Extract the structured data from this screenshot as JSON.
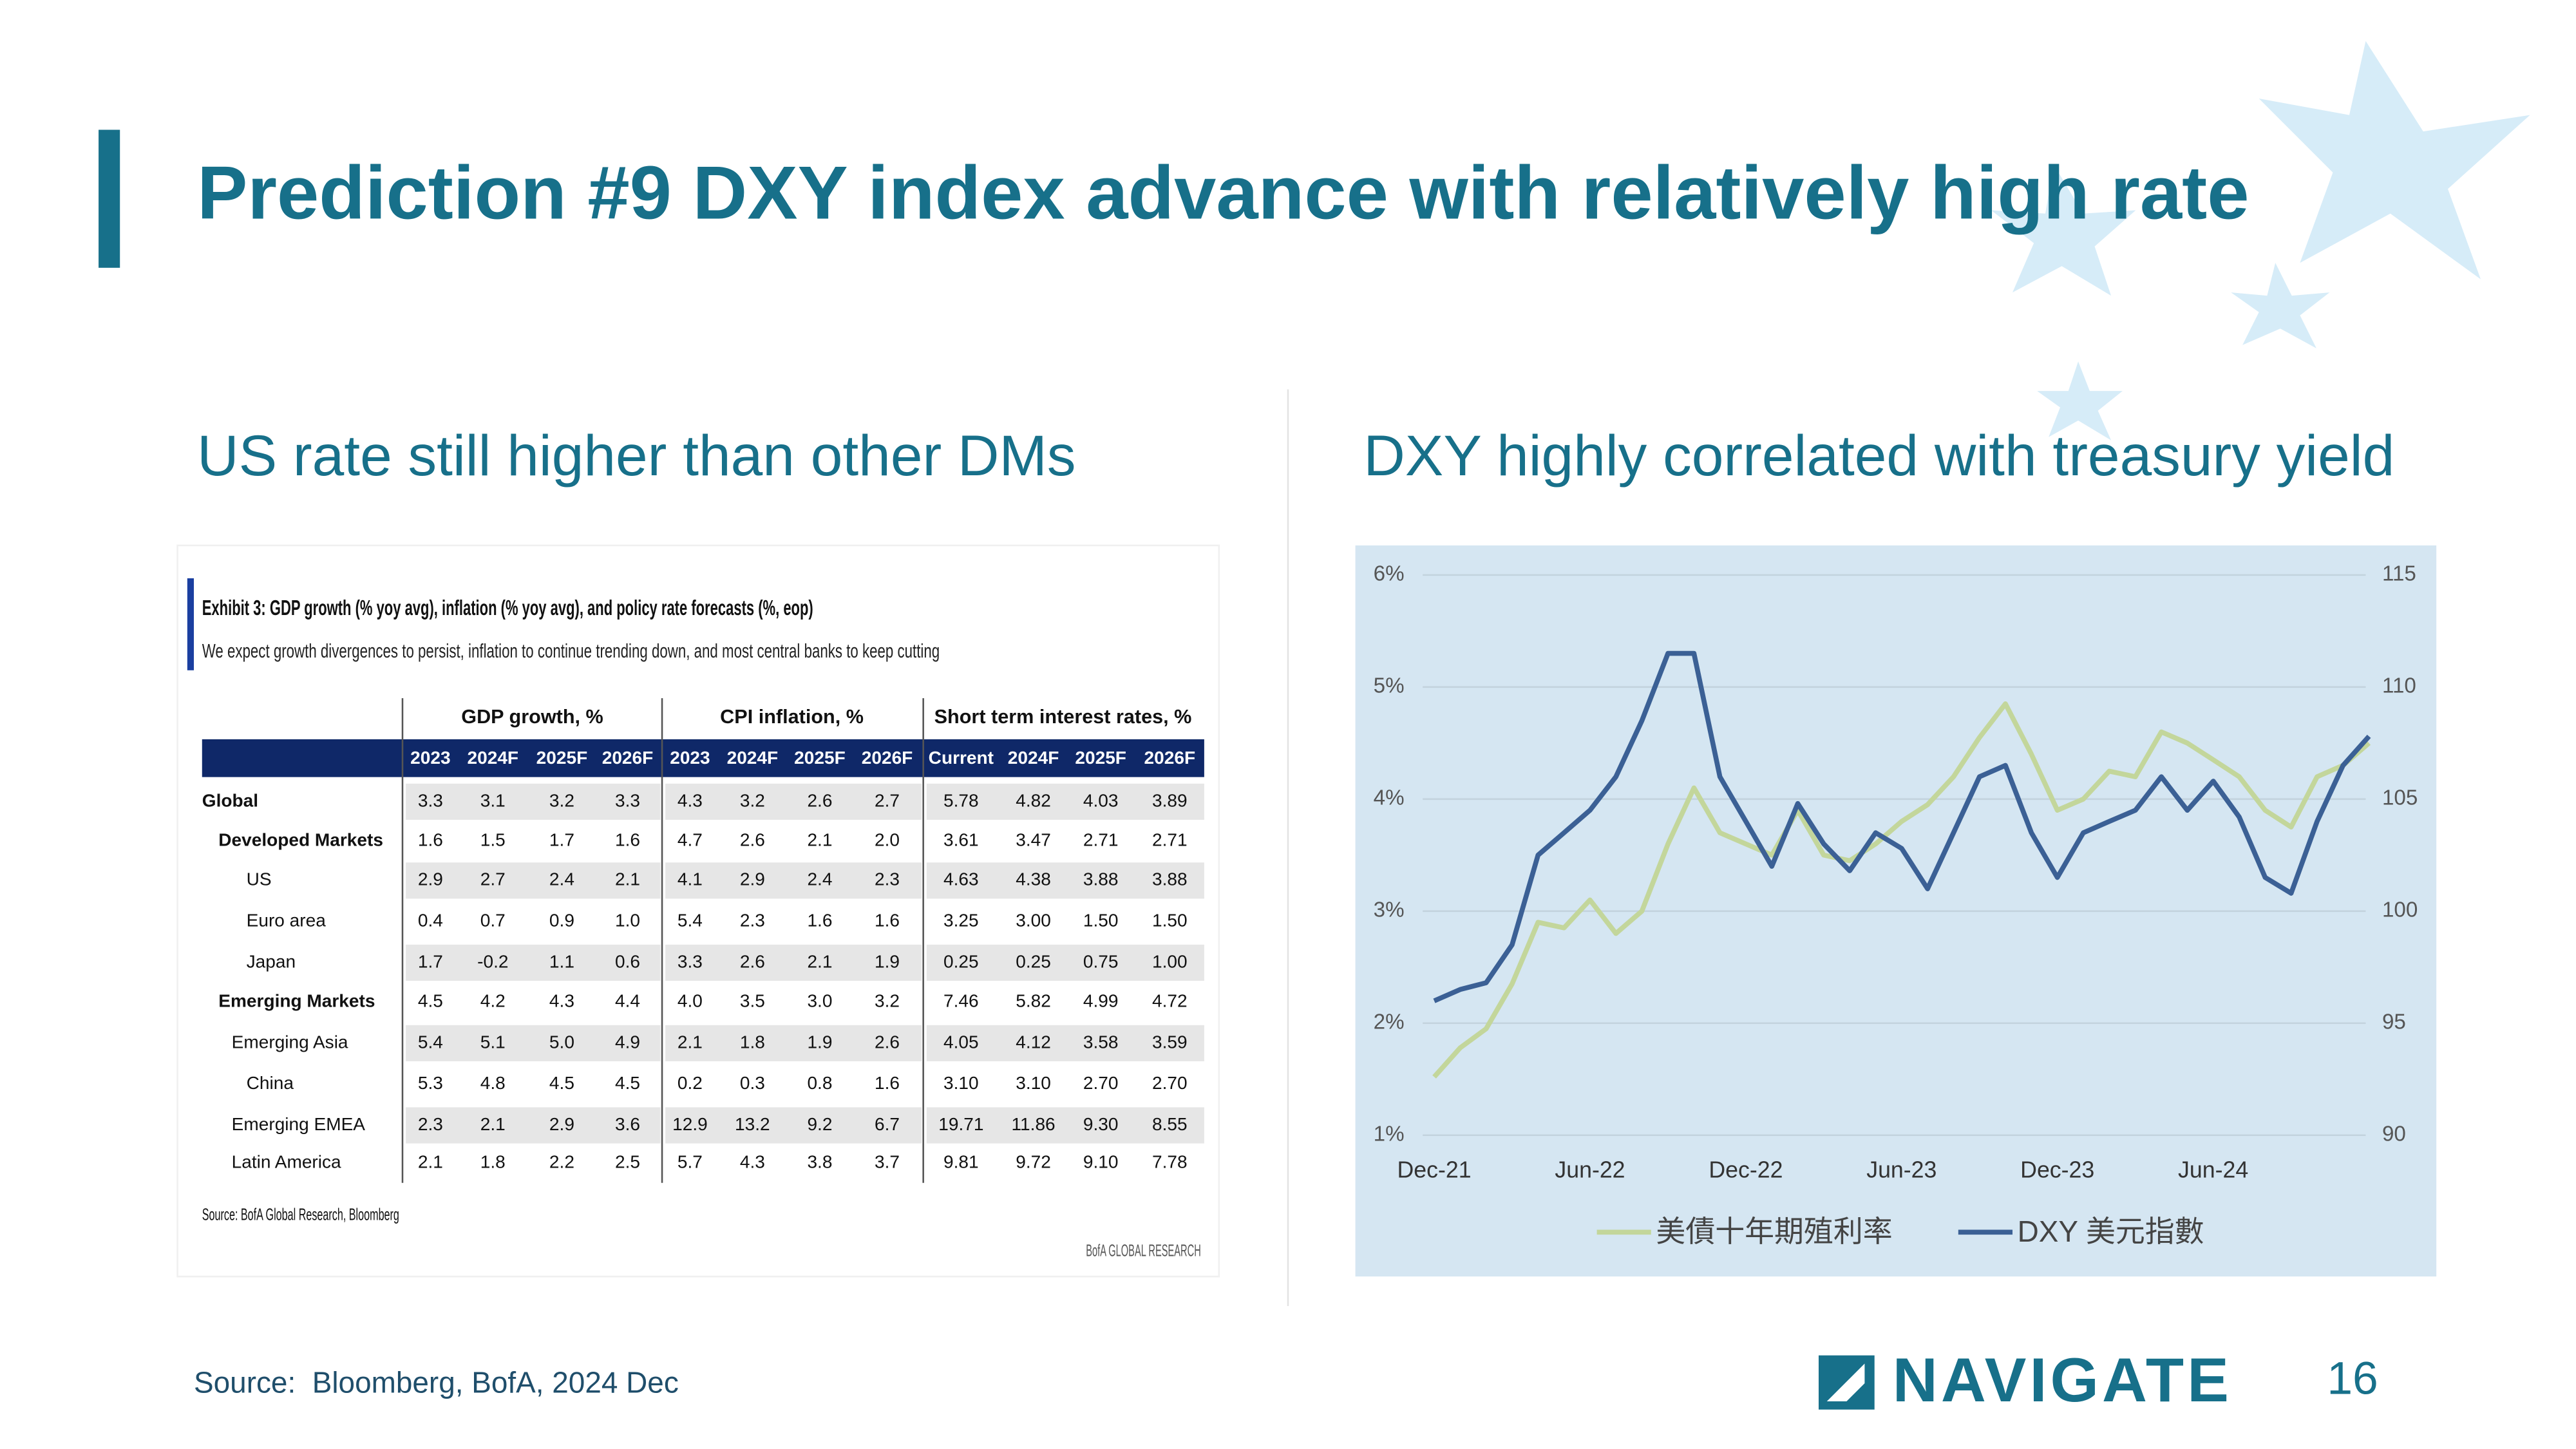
{
  "title": "Prediction #9 DXY index advance with relatively high rate",
  "left_heading": "US rate still higher than other DMs",
  "right_heading": "DXY highly correlated with treasury yield",
  "table": {
    "title": "Exhibit 3: GDP growth (% yoy avg), inflation (% yoy avg), and policy rate forecasts (%, eop)",
    "subtitle": "We expect growth divergences to persist, inflation to continue trending down, and most central banks to keep cutting",
    "groups": [
      "GDP growth, %",
      "CPI inflation, %",
      "Short term interest rates, %"
    ],
    "columns": [
      "2023",
      "2024F",
      "2025F",
      "2026F",
      "2023",
      "2024F",
      "2025F",
      "2026F",
      "Current",
      "2024F",
      "2025F",
      "2026F"
    ],
    "rows": [
      {
        "label": "Global",
        "values": [
          "3.3",
          "3.1",
          "3.2",
          "3.3",
          "4.3",
          "3.2",
          "2.6",
          "2.7",
          "5.78",
          "4.82",
          "4.03",
          "3.89"
        ]
      },
      {
        "label": "Developed Markets",
        "values": [
          "1.6",
          "1.5",
          "1.7",
          "1.6",
          "4.7",
          "2.6",
          "2.1",
          "2.0",
          "3.61",
          "3.47",
          "2.71",
          "2.71"
        ]
      },
      {
        "label": "US",
        "values": [
          "2.9",
          "2.7",
          "2.4",
          "2.1",
          "4.1",
          "2.9",
          "2.4",
          "2.3",
          "4.63",
          "4.38",
          "3.88",
          "3.88"
        ]
      },
      {
        "label": "Euro area",
        "values": [
          "0.4",
          "0.7",
          "0.9",
          "1.0",
          "5.4",
          "2.3",
          "1.6",
          "1.6",
          "3.25",
          "3.00",
          "1.50",
          "1.50"
        ]
      },
      {
        "label": "Japan",
        "values": [
          "1.7",
          "-0.2",
          "1.1",
          "0.6",
          "3.3",
          "2.6",
          "2.1",
          "1.9",
          "0.25",
          "0.25",
          "0.75",
          "1.00"
        ]
      },
      {
        "label": "Emerging Markets",
        "values": [
          "4.5",
          "4.2",
          "4.3",
          "4.4",
          "4.0",
          "3.5",
          "3.0",
          "3.2",
          "7.46",
          "5.82",
          "4.99",
          "4.72"
        ]
      },
      {
        "label": "Emerging Asia",
        "values": [
          "5.4",
          "5.1",
          "5.0",
          "4.9",
          "2.1",
          "1.8",
          "1.9",
          "2.6",
          "4.05",
          "4.12",
          "3.58",
          "3.59"
        ]
      },
      {
        "label": "China",
        "values": [
          "5.3",
          "4.8",
          "4.5",
          "4.5",
          "0.2",
          "0.3",
          "0.8",
          "1.6",
          "3.10",
          "3.10",
          "2.70",
          "2.70"
        ]
      },
      {
        "label": "Emerging EMEA",
        "values": [
          "2.3",
          "2.1",
          "2.9",
          "3.6",
          "12.9",
          "13.2",
          "9.2",
          "6.7",
          "19.71",
          "11.86",
          "9.30",
          "8.55"
        ]
      },
      {
        "label": "Latin America",
        "values": [
          "2.1",
          "1.8",
          "2.2",
          "2.5",
          "5.7",
          "4.3",
          "3.8",
          "3.7",
          "9.81",
          "9.72",
          "9.10",
          "7.78"
        ]
      }
    ],
    "source": "Source: BofA Global Research, Bloomberg",
    "credit": "BofA GLOBAL RESEARCH"
  },
  "chart_data": {
    "type": "line",
    "categories": [
      "Dec-21",
      null,
      null,
      null,
      null,
      null,
      "Jun-22",
      null,
      null,
      null,
      null,
      null,
      "Dec-22",
      null,
      null,
      null,
      null,
      null,
      "Jun-23",
      null,
      null,
      null,
      null,
      null,
      "Dec-23",
      null,
      null,
      null,
      null,
      null,
      "Jun-24",
      null,
      null,
      null,
      null,
      null,
      null
    ],
    "series": [
      {
        "name": "美債十年期殖利率",
        "color": "#c3d69b",
        "axis": "y",
        "values": [
          1.52,
          1.78,
          1.95,
          2.35,
          2.9,
          2.85,
          3.1,
          2.8,
          3.0,
          3.6,
          4.1,
          3.7,
          3.6,
          3.5,
          3.9,
          3.5,
          3.45,
          3.6,
          3.8,
          3.95,
          4.2,
          4.55,
          4.85,
          4.4,
          3.9,
          4.0,
          4.25,
          4.2,
          4.6,
          4.5,
          4.35,
          4.2,
          3.9,
          3.75,
          4.2,
          4.3,
          4.5
        ]
      },
      {
        "name": "DXY 美元指數",
        "color": "#3b6095",
        "axis": "y2",
        "values": [
          96,
          96.5,
          96.8,
          98.5,
          102.5,
          103.5,
          104.5,
          106,
          108.5,
          111.5,
          111.5,
          106,
          104,
          102,
          104.8,
          103,
          101.8,
          103.5,
          102.8,
          101,
          103.5,
          106,
          106.5,
          103.5,
          101.5,
          103.5,
          104,
          104.5,
          106,
          104.5,
          105.8,
          104.2,
          101.5,
          100.8,
          104,
          106.5,
          107.8
        ]
      }
    ],
    "ylim": [
      1,
      6
    ],
    "yticks": [
      {
        "value": 1,
        "label": "1%"
      },
      {
        "value": 2,
        "label": "2%"
      },
      {
        "value": 3,
        "label": "3%"
      },
      {
        "value": 4,
        "label": "4%"
      },
      {
        "value": 5,
        "label": "5%"
      },
      {
        "value": 6,
        "label": "6%"
      }
    ],
    "y2lim": [
      90,
      115
    ],
    "y2ticks": [
      90,
      95,
      100,
      105,
      110,
      115
    ],
    "grid": true,
    "legend": "bottom"
  },
  "footer": {
    "source": "Source:  Bloomberg, BofA, 2024 Dec",
    "logo": "NAVIGATE",
    "page": "16"
  }
}
